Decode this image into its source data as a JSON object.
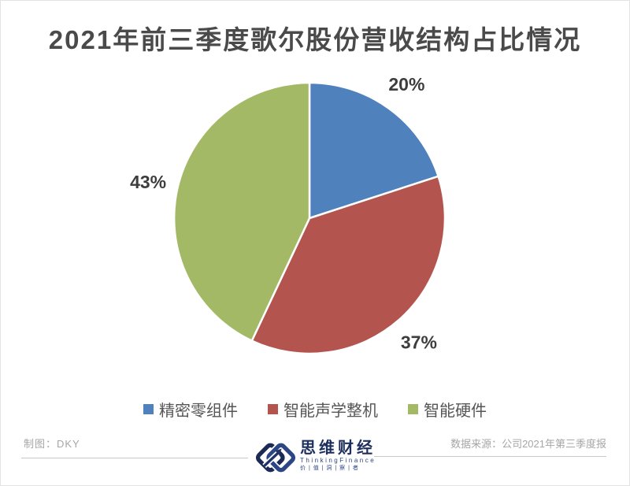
{
  "title": "2021年前三季度歌尔股份营收结构占比情况",
  "chart_data": {
    "type": "pie",
    "title": "2021年前三季度歌尔股份营收结构占比情况",
    "categories": [
      "精密零组件",
      "智能声学整机",
      "智能硬件"
    ],
    "values": [
      20,
      37,
      43
    ],
    "unit": "%",
    "labels": [
      "20%",
      "37%",
      "43%"
    ],
    "colors": [
      "#4f81bd",
      "#b3554e",
      "#a3b966"
    ],
    "start_angle_deg": 0,
    "direction": "clockwise",
    "legend_position": "bottom",
    "slice_border_color": "#ffffff"
  },
  "legend": {
    "items": [
      {
        "label": "精密零组件",
        "color": "#4f81bd"
      },
      {
        "label": "智能声学整机",
        "color": "#b3554e"
      },
      {
        "label": "智能硬件",
        "color": "#a3b966"
      }
    ]
  },
  "footer": {
    "credit": "制图：DKY",
    "source": "数据来源：公司2021年第三季度报",
    "logo": {
      "name": "思维财经",
      "subtitle": "ThinkingFinance",
      "tagline": "价 | 值 | 洞 | 察 | 者",
      "color": "#1e2f5e"
    }
  }
}
